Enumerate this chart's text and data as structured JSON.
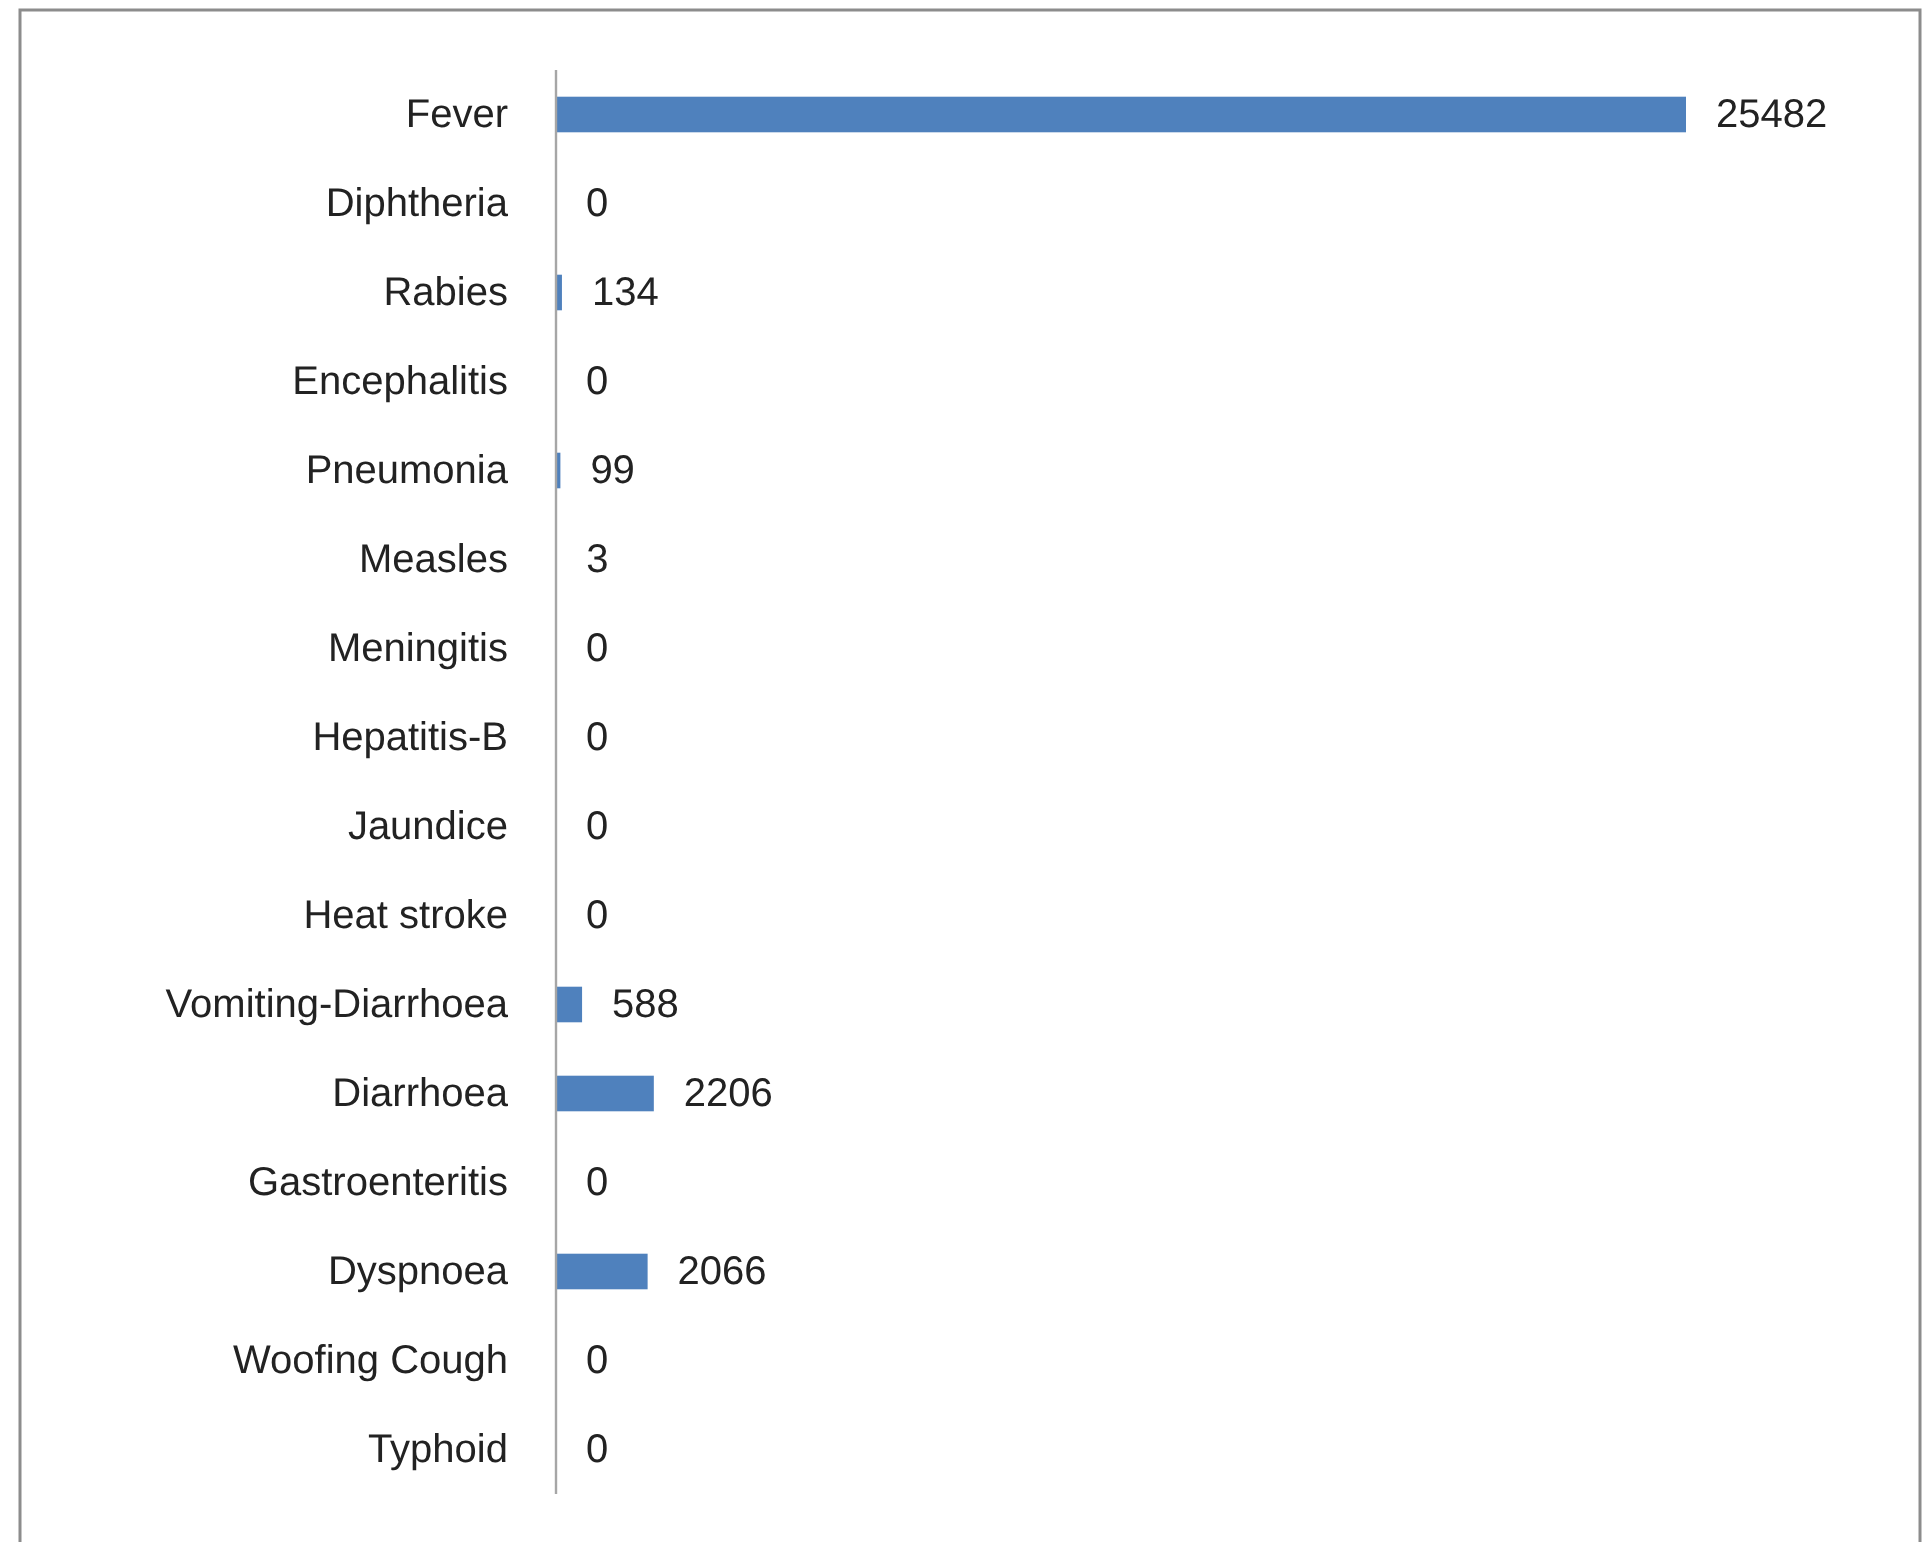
{
  "chart_data": {
    "type": "bar",
    "orientation": "horizontal",
    "categories": [
      "Fever",
      "Diphtheria",
      "Rabies",
      "Encephalitis",
      "Pneumonia",
      "Measles",
      "Meningitis",
      "Hepatitis-B",
      "Jaundice",
      "Heat stroke",
      "Vomiting-Diarrhoea",
      "Diarrhoea",
      "Gastroenteritis",
      "Dyspnoea",
      "Woofing Cough",
      "Typhoid"
    ],
    "values": [
      25482,
      0,
      134,
      0,
      99,
      3,
      0,
      0,
      0,
      0,
      588,
      2206,
      0,
      2066,
      0,
      0
    ],
    "color": "#4f81bd",
    "data_labels": true
  }
}
